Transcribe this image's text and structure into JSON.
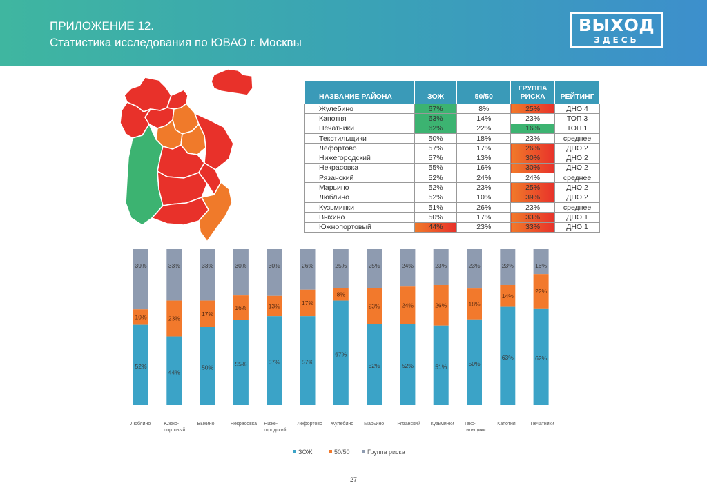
{
  "header": {
    "title_line1": "ПРИЛОЖЕНИЕ 12.",
    "title_line2": "Статистика исследования по ЮВАО г. Москвы",
    "logo_big": "ВЫХОД",
    "logo_small": "ЗДЕСЬ"
  },
  "colors": {
    "header_gradient_start": "#3fb6a0",
    "header_gradient_end": "#3d8fcc",
    "table_header": "#3a9ab8",
    "good": "#3cb371",
    "bad_orange": "#f07a2a",
    "bad_red": "#e8312a",
    "zozh": "#3ba3c7",
    "fifty": "#f2792c",
    "risk": "#8e9bb0"
  },
  "table": {
    "headers": [
      "НАЗВАНИЕ РАЙОНА",
      "ЗОЖ",
      "50/50",
      "ГРУППА РИСКА",
      "РЕЙТИНГ"
    ],
    "rows": [
      {
        "name": "Жулебино",
        "zozh": "67%",
        "fifty": "8%",
        "risk": "25%",
        "rating": "ДНО 4",
        "zozh_hl": "good",
        "risk_hl": "bad"
      },
      {
        "name": "Капотня",
        "zozh": "63%",
        "fifty": "14%",
        "risk": "23%",
        "rating": "ТОП 3",
        "zozh_hl": "good",
        "risk_hl": ""
      },
      {
        "name": "Печатники",
        "zozh": "62%",
        "fifty": "22%",
        "risk": "16%",
        "rating": "ТОП 1",
        "zozh_hl": "good",
        "risk_hl": "good"
      },
      {
        "name": "Текстильщики",
        "zozh": "50%",
        "fifty": "18%",
        "risk": "23%",
        "rating": "среднее",
        "zozh_hl": "",
        "risk_hl": ""
      },
      {
        "name": "Лефортово",
        "zozh": "57%",
        "fifty": "17%",
        "risk": "26%",
        "rating": "ДНО 2",
        "zozh_hl": "",
        "risk_hl": "bad"
      },
      {
        "name": "Нижегородский",
        "zozh": "57%",
        "fifty": "13%",
        "risk": "30%",
        "rating": "ДНО 2",
        "zozh_hl": "",
        "risk_hl": "bad"
      },
      {
        "name": "Некрасовка",
        "zozh": "55%",
        "fifty": "16%",
        "risk": "30%",
        "rating": "ДНО 2",
        "zozh_hl": "",
        "risk_hl": "bad"
      },
      {
        "name": "Рязанский",
        "zozh": "52%",
        "fifty": "24%",
        "risk": "24%",
        "rating": "среднее",
        "zozh_hl": "",
        "risk_hl": ""
      },
      {
        "name": "Марьино",
        "zozh": "52%",
        "fifty": "23%",
        "risk": "25%",
        "rating": "ДНО 2",
        "zozh_hl": "",
        "risk_hl": "bad"
      },
      {
        "name": "Люблино",
        "zozh": "52%",
        "fifty": "10%",
        "risk": "39%",
        "rating": "ДНО 2",
        "zozh_hl": "",
        "risk_hl": "bad"
      },
      {
        "name": "Кузьминки",
        "zozh": "51%",
        "fifty": "26%",
        "risk": "23%",
        "rating": "среднее",
        "zozh_hl": "",
        "risk_hl": ""
      },
      {
        "name": "Выхино",
        "zozh": "50%",
        "fifty": "17%",
        "risk": "33%",
        "rating": "ДНО 1",
        "zozh_hl": "",
        "risk_hl": "bad"
      },
      {
        "name": "Южнопортовый",
        "zozh": "44%",
        "fifty": "23%",
        "risk": "33%",
        "rating": "ДНО 1",
        "zozh_hl": "bad",
        "risk_hl": "bad"
      }
    ]
  },
  "chart_data": {
    "type": "bar",
    "stacked": true,
    "normalized": true,
    "categories": [
      "Люблино",
      "Южно-портовый",
      "Выхино",
      "Некрасовка",
      "Ниже-городский",
      "Лефортово",
      "Жулебино",
      "Марьино",
      "Рязанский",
      "Кузьминки",
      "Текс-тильщики",
      "Капотня",
      "Печатники"
    ],
    "series": [
      {
        "name": "ЗОЖ",
        "color": "#3ba3c7",
        "values": [
          52,
          44,
          50,
          55,
          57,
          57,
          67,
          52,
          52,
          51,
          50,
          63,
          62
        ]
      },
      {
        "name": "50/50",
        "color": "#f2792c",
        "values": [
          10,
          23,
          17,
          16,
          13,
          17,
          8,
          23,
          24,
          26,
          18,
          14,
          22
        ]
      },
      {
        "name": "Группа риска",
        "color": "#8e9bb0",
        "values": [
          39,
          33,
          33,
          30,
          30,
          26,
          25,
          25,
          24,
          23,
          23,
          23,
          16
        ]
      }
    ],
    "legend_position": "bottom",
    "grid": false
  },
  "page_number": "27"
}
